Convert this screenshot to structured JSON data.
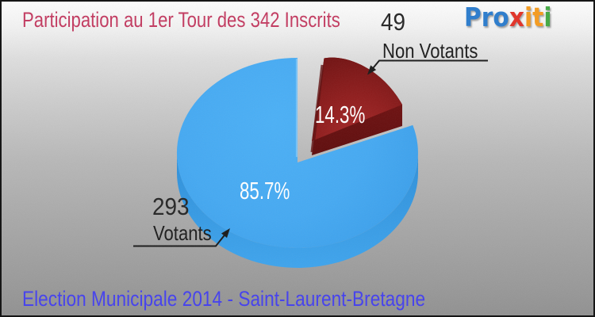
{
  "header": {
    "title": "Participation au 1er Tour des 342 Inscrits",
    "title_color": "#c33a60",
    "logo": {
      "name": "Proxiti",
      "letters": [
        {
          "ch": "P",
          "color": "#2b7ccd"
        },
        {
          "ch": "r",
          "color": "#2b7ccd"
        },
        {
          "ch": "o",
          "color": "#2b7ccd"
        },
        {
          "ch": "x",
          "color": "#e23227"
        },
        {
          "ch": "i",
          "color": "#f59b1e"
        },
        {
          "ch": "t",
          "color": "#f59b1e"
        },
        {
          "ch": "i",
          "color": "#43a943"
        }
      ]
    }
  },
  "chart_data": {
    "type": "pie",
    "title": "Participation au 1er Tour des 342 Inscrits",
    "total_inscrits": 342,
    "slices": [
      {
        "label": "Votants",
        "count": 293,
        "pct": 85.7,
        "pct_label": "85.7%",
        "color": "#45a9f2",
        "side_color": "#3094e0",
        "exploded": false
      },
      {
        "label": "Non Votants",
        "count": 49,
        "pct": 14.3,
        "pct_label": "14.3%",
        "color": "#8e1c1c",
        "side_color": "#6b1010",
        "exploded": true
      }
    ],
    "legend_position": "callouts",
    "effect": "3d"
  },
  "footer": {
    "text": "Election Municipale 2014 - Saint-Laurent-Bretagne",
    "color": "#4440ee"
  }
}
